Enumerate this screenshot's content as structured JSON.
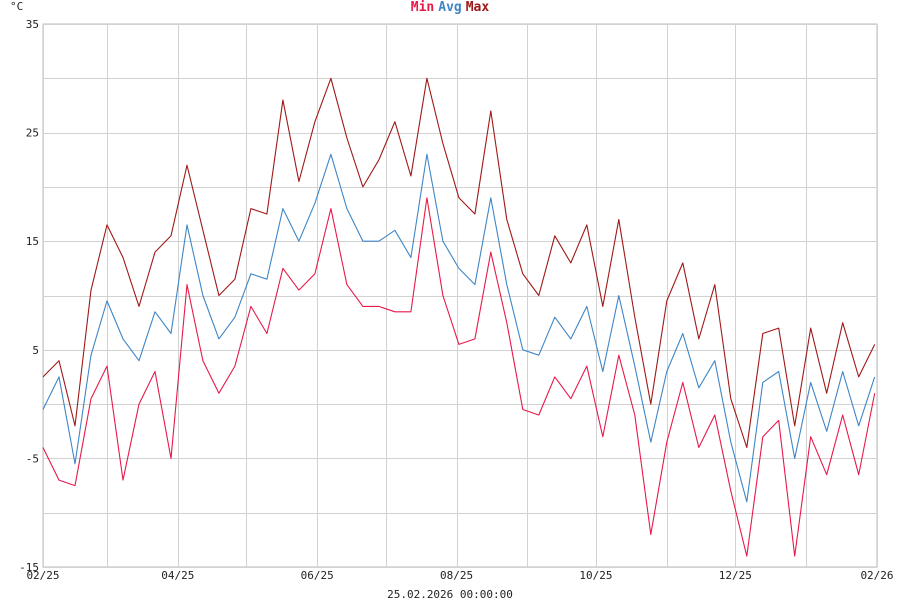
{
  "legend": {
    "min": {
      "label": "Min",
      "color": "#e8194a"
    },
    "avg": {
      "label": "Avg",
      "color": "#3f86c6"
    },
    "max": {
      "label": "Max",
      "color": "#a01818"
    }
  },
  "unit_label": "°C",
  "footer_timestamp": "25.02.2026 00:00:00",
  "chart_data": {
    "type": "line",
    "title": "",
    "xlabel": "",
    "ylabel": "°C",
    "ylim": [
      -15,
      35
    ],
    "yticks": [
      35,
      25,
      15,
      5,
      -5,
      -15
    ],
    "xlim": [
      "2025-02-25",
      "2026-02-25"
    ],
    "xticks": [
      {
        "date": "2025-02-25",
        "label": "02/25"
      },
      {
        "date": "2025-04-25",
        "label": "04/25"
      },
      {
        "date": "2025-06-25",
        "label": "06/25"
      },
      {
        "date": "2025-08-25",
        "label": "08/25"
      },
      {
        "date": "2025-10-25",
        "label": "10/25"
      },
      {
        "date": "2025-12-25",
        "label": "12/25"
      },
      {
        "date": "2026-02-25",
        "label": "02/26"
      }
    ],
    "vertical_gridlines": [
      "2025-02-25",
      "2025-03-25",
      "2025-04-25",
      "2025-05-25",
      "2025-06-25",
      "2025-07-25",
      "2025-08-25",
      "2025-09-25",
      "2025-10-25",
      "2025-11-25",
      "2025-12-25",
      "2026-01-25",
      "2026-02-25"
    ],
    "grid": true,
    "legend_position": "top-center",
    "x": [
      "2025-02-25",
      "2025-03-04",
      "2025-03-11",
      "2025-03-18",
      "2025-03-25",
      "2025-04-01",
      "2025-04-08",
      "2025-04-15",
      "2025-04-22",
      "2025-04-29",
      "2025-05-06",
      "2025-05-13",
      "2025-05-20",
      "2025-05-27",
      "2025-06-03",
      "2025-06-10",
      "2025-06-17",
      "2025-06-24",
      "2025-07-01",
      "2025-07-08",
      "2025-07-15",
      "2025-07-22",
      "2025-07-29",
      "2025-08-05",
      "2025-08-12",
      "2025-08-19",
      "2025-08-26",
      "2025-09-02",
      "2025-09-09",
      "2025-09-16",
      "2025-09-23",
      "2025-09-30",
      "2025-10-07",
      "2025-10-14",
      "2025-10-21",
      "2025-10-28",
      "2025-11-04",
      "2025-11-11",
      "2025-11-18",
      "2025-11-25",
      "2025-12-02",
      "2025-12-09",
      "2025-12-16",
      "2025-12-23",
      "2025-12-30",
      "2026-01-06",
      "2026-01-13",
      "2026-01-20",
      "2026-01-27",
      "2026-02-03",
      "2026-02-10",
      "2026-02-17",
      "2026-02-24"
    ],
    "series": [
      {
        "name": "Max",
        "color": "#a01818",
        "values": [
          2.5,
          4.0,
          -2.0,
          10.5,
          16.5,
          13.5,
          9.0,
          14.0,
          15.5,
          22.0,
          16.0,
          10.0,
          11.5,
          18.0,
          17.5,
          28.0,
          20.5,
          26.0,
          30.0,
          24.5,
          20.0,
          22.5,
          26.0,
          21.0,
          30.0,
          24.0,
          19.0,
          17.5,
          27.0,
          17.0,
          12.0,
          10.0,
          15.5,
          13.0,
          16.5,
          9.0,
          17.0,
          8.0,
          0.0,
          9.5,
          13.0,
          6.0,
          11.0,
          0.5,
          -4.0,
          6.5,
          7.0,
          -2.0,
          7.0,
          1.0,
          7.5,
          2.5,
          5.5
        ]
      },
      {
        "name": "Avg",
        "color": "#3f86c6",
        "values": [
          -0.5,
          2.5,
          -5.5,
          4.5,
          9.5,
          6.0,
          4.0,
          8.5,
          6.5,
          16.5,
          10.0,
          6.0,
          8.0,
          12.0,
          11.5,
          18.0,
          15.0,
          18.5,
          23.0,
          18.0,
          15.0,
          15.0,
          16.0,
          13.5,
          23.0,
          15.0,
          12.5,
          11.0,
          19.0,
          11.0,
          5.0,
          4.5,
          8.0,
          6.0,
          9.0,
          3.0,
          10.0,
          3.5,
          -3.5,
          3.0,
          6.5,
          1.5,
          4.0,
          -3.5,
          -9.0,
          2.0,
          3.0,
          -5.0,
          2.0,
          -2.5,
          3.0,
          -2.0,
          2.5
        ]
      },
      {
        "name": "Min",
        "color": "#e8194a",
        "values": [
          -4.0,
          -7.0,
          -7.5,
          0.5,
          3.5,
          -7.0,
          0.0,
          3.0,
          -5.0,
          11.0,
          4.0,
          1.0,
          3.5,
          9.0,
          6.5,
          12.5,
          10.5,
          12.0,
          18.0,
          11.0,
          9.0,
          9.0,
          8.5,
          8.5,
          19.0,
          10.0,
          5.5,
          6.0,
          14.0,
          7.5,
          -0.5,
          -1.0,
          2.5,
          0.5,
          3.5,
          -3.0,
          4.5,
          -1.0,
          -12.0,
          -3.5,
          2.0,
          -4.0,
          -1.0,
          -8.0,
          -14.0,
          -3.0,
          -1.5,
          -14.0,
          -3.0,
          -6.5,
          -1.0,
          -6.5,
          1.0
        ]
      }
    ]
  }
}
